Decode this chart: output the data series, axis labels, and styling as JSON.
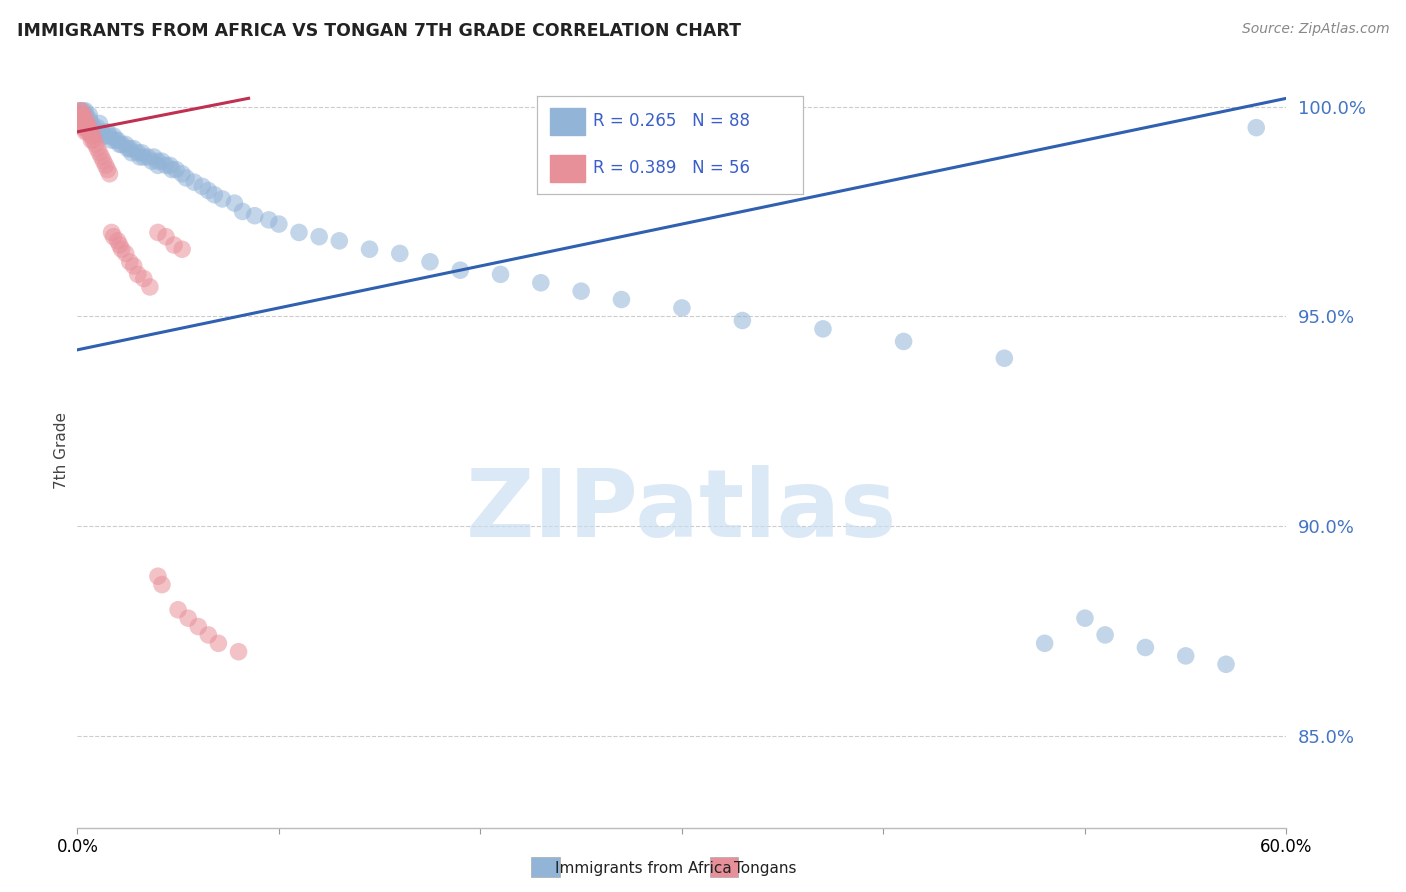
{
  "title": "IMMIGRANTS FROM AFRICA VS TONGAN 7TH GRADE CORRELATION CHART",
  "source": "Source: ZipAtlas.com",
  "ylabel": "7th Grade",
  "xlim": [
    0.0,
    0.6
  ],
  "ylim": [
    0.828,
    1.008
  ],
  "yticks": [
    0.85,
    0.9,
    0.95,
    1.0
  ],
  "ytick_labels": [
    "85.0%",
    "90.0%",
    "95.0%",
    "100.0%"
  ],
  "xticks": [
    0.0,
    0.1,
    0.2,
    0.3,
    0.4,
    0.5,
    0.6
  ],
  "xtick_labels": [
    "0.0%",
    "",
    "",
    "",
    "",
    "",
    "60.0%"
  ],
  "legend_blue_label": "Immigrants from Africa",
  "legend_pink_label": "Tongans",
  "R_blue": 0.265,
  "N_blue": 88,
  "R_pink": 0.389,
  "N_pink": 56,
  "blue_color": "#92b4d7",
  "pink_color": "#e8909a",
  "blue_line_color": "#3060b0",
  "pink_line_color": "#c03050",
  "watermark": "ZIPatlas",
  "blue_x": [
    0.001,
    0.001,
    0.001,
    0.002,
    0.002,
    0.002,
    0.002,
    0.003,
    0.003,
    0.003,
    0.004,
    0.004,
    0.004,
    0.005,
    0.005,
    0.006,
    0.006,
    0.007,
    0.007,
    0.008,
    0.009,
    0.01,
    0.011,
    0.012,
    0.013,
    0.014,
    0.015,
    0.016,
    0.017,
    0.018,
    0.019,
    0.02,
    0.021,
    0.022,
    0.024,
    0.025,
    0.026,
    0.027,
    0.028,
    0.03,
    0.031,
    0.032,
    0.033,
    0.035,
    0.037,
    0.038,
    0.04,
    0.04,
    0.042,
    0.044,
    0.046,
    0.047,
    0.049,
    0.052,
    0.054,
    0.058,
    0.062,
    0.065,
    0.068,
    0.072,
    0.078,
    0.082,
    0.088,
    0.095,
    0.1,
    0.11,
    0.12,
    0.13,
    0.145,
    0.16,
    0.175,
    0.19,
    0.21,
    0.23,
    0.25,
    0.27,
    0.3,
    0.33,
    0.37,
    0.41,
    0.46,
    0.48,
    0.5,
    0.51,
    0.53,
    0.55,
    0.57,
    0.585
  ],
  "blue_y": [
    0.999,
    0.998,
    0.997,
    0.999,
    0.998,
    0.997,
    0.996,
    0.999,
    0.998,
    0.997,
    0.999,
    0.998,
    0.996,
    0.997,
    0.996,
    0.998,
    0.997,
    0.996,
    0.995,
    0.995,
    0.994,
    0.995,
    0.996,
    0.994,
    0.993,
    0.993,
    0.994,
    0.993,
    0.992,
    0.993,
    0.992,
    0.992,
    0.991,
    0.991,
    0.991,
    0.99,
    0.99,
    0.989,
    0.99,
    0.989,
    0.988,
    0.989,
    0.988,
    0.988,
    0.987,
    0.988,
    0.987,
    0.986,
    0.987,
    0.986,
    0.986,
    0.985,
    0.985,
    0.984,
    0.983,
    0.982,
    0.981,
    0.98,
    0.979,
    0.978,
    0.977,
    0.975,
    0.974,
    0.973,
    0.972,
    0.97,
    0.969,
    0.968,
    0.966,
    0.965,
    0.963,
    0.961,
    0.96,
    0.958,
    0.956,
    0.954,
    0.952,
    0.949,
    0.947,
    0.944,
    0.94,
    0.872,
    0.878,
    0.874,
    0.871,
    0.869,
    0.867,
    0.995
  ],
  "pink_x": [
    0.001,
    0.001,
    0.001,
    0.001,
    0.002,
    0.002,
    0.002,
    0.002,
    0.003,
    0.003,
    0.003,
    0.003,
    0.004,
    0.004,
    0.004,
    0.004,
    0.005,
    0.005,
    0.005,
    0.006,
    0.006,
    0.007,
    0.007,
    0.008,
    0.008,
    0.009,
    0.01,
    0.011,
    0.012,
    0.013,
    0.014,
    0.015,
    0.016,
    0.017,
    0.018,
    0.02,
    0.021,
    0.022,
    0.024,
    0.026,
    0.028,
    0.03,
    0.033,
    0.036,
    0.04,
    0.044,
    0.048,
    0.052,
    0.04,
    0.042,
    0.05,
    0.055,
    0.06,
    0.065,
    0.07,
    0.08
  ],
  "pink_y": [
    0.999,
    0.998,
    0.997,
    0.996,
    0.999,
    0.998,
    0.997,
    0.996,
    0.998,
    0.997,
    0.996,
    0.995,
    0.997,
    0.996,
    0.995,
    0.994,
    0.996,
    0.995,
    0.994,
    0.995,
    0.994,
    0.993,
    0.992,
    0.993,
    0.992,
    0.991,
    0.99,
    0.989,
    0.988,
    0.987,
    0.986,
    0.985,
    0.984,
    0.97,
    0.969,
    0.968,
    0.967,
    0.966,
    0.965,
    0.963,
    0.962,
    0.96,
    0.959,
    0.957,
    0.97,
    0.969,
    0.967,
    0.966,
    0.888,
    0.886,
    0.88,
    0.878,
    0.876,
    0.874,
    0.872,
    0.87
  ],
  "blue_line_x": [
    0.0,
    0.6
  ],
  "blue_line_y": [
    0.942,
    1.002
  ],
  "pink_line_x": [
    0.0,
    0.085
  ],
  "pink_line_y": [
    0.994,
    1.002
  ]
}
